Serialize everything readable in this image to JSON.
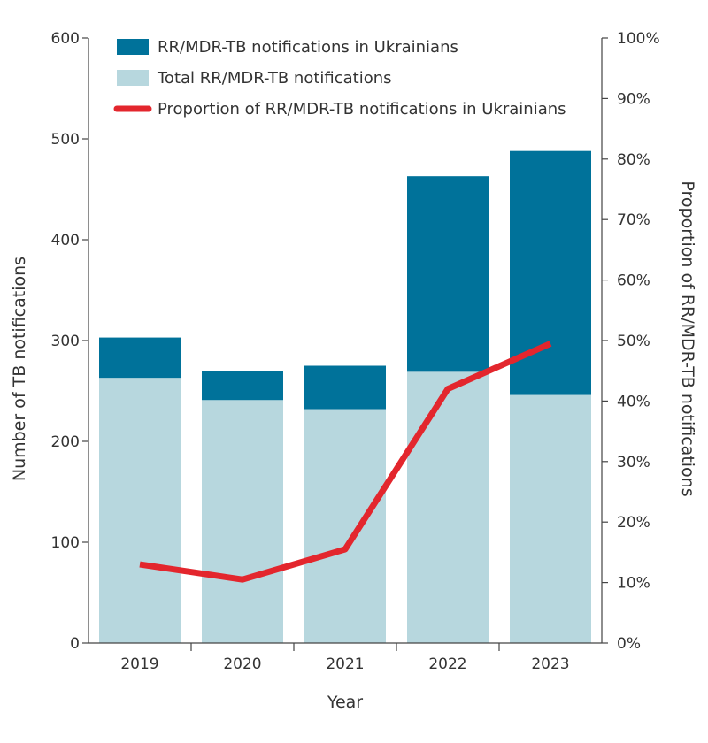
{
  "chart_data": {
    "type": "bar",
    "categories": [
      "2019",
      "2020",
      "2021",
      "2022",
      "2023"
    ],
    "series": [
      {
        "name": "Total RR/MDR-TB notifications",
        "kind": "bar-base",
        "color": "#b7d7de",
        "values": [
          263,
          241,
          232,
          269,
          246
        ]
      },
      {
        "name": "RR/MDR-TB notifications in Ukrainians",
        "kind": "bar-stack",
        "color": "#00729a",
        "values": [
          40,
          29,
          43,
          194,
          242
        ]
      },
      {
        "name": "Proportion of RR/MDR-TB notifications in Ukrainians",
        "kind": "line",
        "axis": "right",
        "color": "#e3262d",
        "values": [
          13.0,
          10.5,
          15.5,
          42.0,
          49.5
        ]
      }
    ],
    "xlabel": "Year",
    "ylabel": "Number of TB notifications",
    "y2label": "Proportion of RR/MDR-TB notifications",
    "ylim": [
      0,
      600
    ],
    "yticks": [
      "0",
      "100",
      "200",
      "300",
      "400",
      "500",
      "600"
    ],
    "y2lim": [
      0,
      100
    ],
    "y2ticks": [
      "0%",
      "10%",
      "20%",
      "30%",
      "40%",
      "50%",
      "60%",
      "70%",
      "80%",
      "90%",
      "100%"
    ],
    "legend": [
      "RR/MDR-TB notifications in Ukrainians",
      "Total RR/MDR-TB notifications",
      "Proportion of RR/MDR-TB notifications in Ukrainians"
    ],
    "legend_position": "top",
    "grid": false
  }
}
